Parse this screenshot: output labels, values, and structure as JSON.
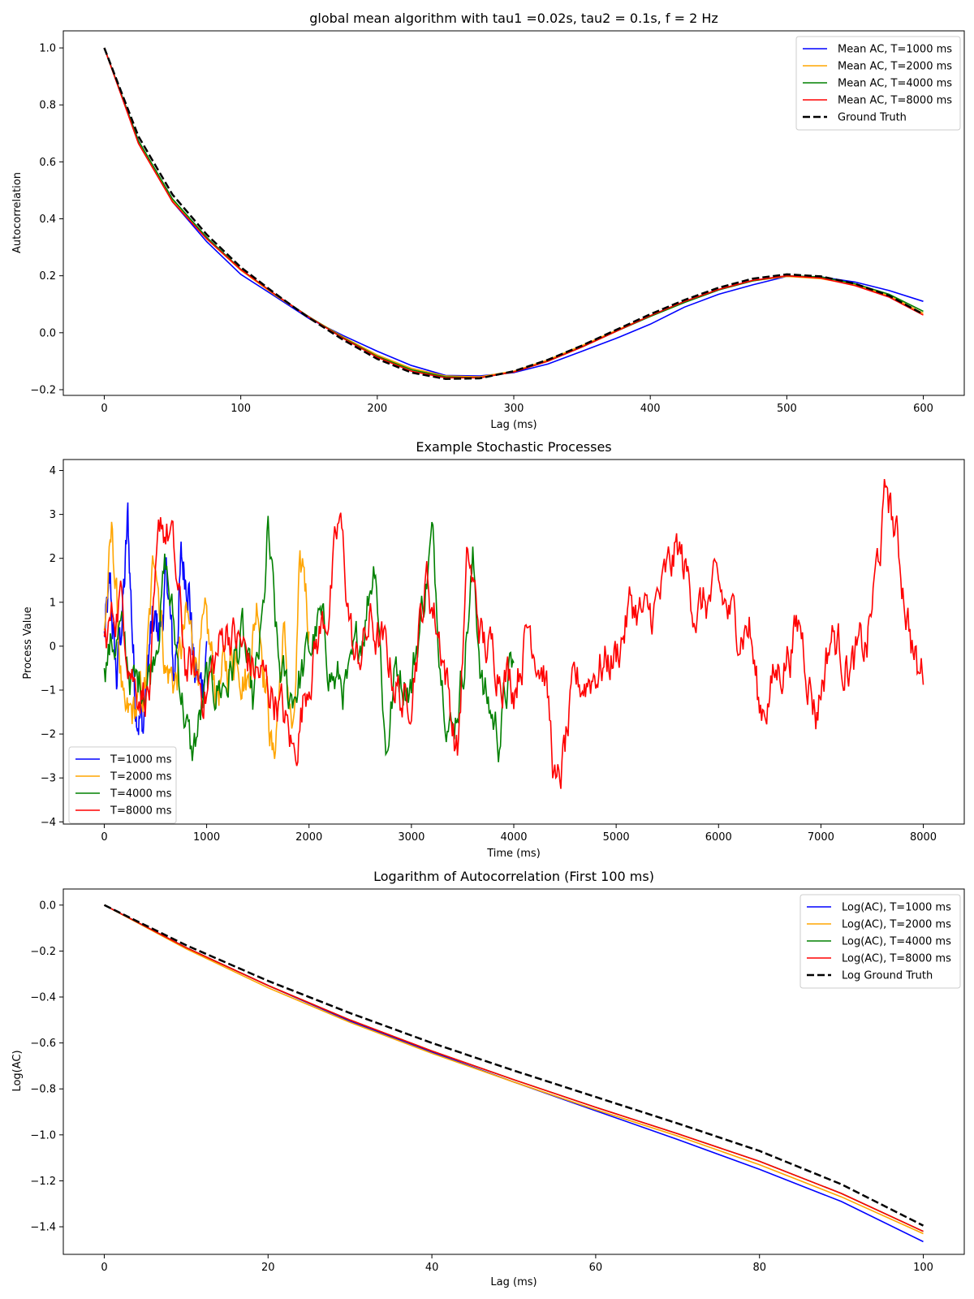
{
  "chart_data": [
    {
      "id": "ac",
      "type": "line",
      "title": "global mean algorithm with tau1 =0.02s, tau2 = 0.1s, f = 2 Hz",
      "xlabel": "Lag (ms)",
      "ylabel": "Autocorrelation",
      "xlim": [
        -30,
        630
      ],
      "ylim": [
        -0.22,
        1.06
      ],
      "xticks": [
        0,
        100,
        200,
        300,
        400,
        500,
        600
      ],
      "yticks": [
        -0.2,
        0.0,
        0.2,
        0.4,
        0.6,
        0.8,
        1.0
      ],
      "xtick_labels": [
        "0",
        "100",
        "200",
        "300",
        "400",
        "500",
        "600"
      ],
      "ytick_labels": [
        "−0.2",
        "0.0",
        "0.2",
        "0.4",
        "0.6",
        "0.8",
        "1.0"
      ],
      "legend_position": "top-right",
      "series": [
        {
          "name": "Mean AC, T=1000 ms",
          "color": "#0000ff",
          "style": "solid",
          "x": [
            0,
            25,
            50,
            75,
            100,
            125,
            150,
            175,
            200,
            225,
            250,
            275,
            300,
            325,
            350,
            375,
            400,
            425,
            450,
            475,
            500,
            525,
            550,
            575,
            600
          ],
          "y": [
            1.0,
            0.675,
            0.46,
            0.32,
            0.205,
            0.128,
            0.05,
            -0.01,
            -0.065,
            -0.115,
            -0.15,
            -0.152,
            -0.14,
            -0.11,
            -0.065,
            -0.02,
            0.03,
            0.09,
            0.135,
            0.168,
            0.198,
            0.196,
            0.178,
            0.148,
            0.11
          ]
        },
        {
          "name": "Mean AC, T=2000 ms",
          "color": "#ffa500",
          "style": "solid",
          "x": [
            0,
            25,
            50,
            75,
            100,
            125,
            150,
            175,
            200,
            225,
            250,
            275,
            300,
            325,
            350,
            375,
            400,
            425,
            450,
            475,
            500,
            525,
            550,
            575,
            600
          ],
          "y": [
            1.0,
            0.67,
            0.465,
            0.33,
            0.22,
            0.132,
            0.055,
            -0.015,
            -0.078,
            -0.125,
            -0.152,
            -0.155,
            -0.135,
            -0.095,
            -0.045,
            0.008,
            0.06,
            0.11,
            0.152,
            0.182,
            0.198,
            0.19,
            0.168,
            0.13,
            0.068
          ]
        },
        {
          "name": "Mean AC, T=4000 ms",
          "color": "#008000",
          "style": "solid",
          "x": [
            0,
            25,
            50,
            75,
            100,
            125,
            150,
            175,
            200,
            225,
            250,
            275,
            300,
            325,
            350,
            375,
            400,
            425,
            450,
            475,
            500,
            525,
            550,
            575,
            600
          ],
          "y": [
            1.0,
            0.675,
            0.47,
            0.335,
            0.223,
            0.135,
            0.056,
            -0.018,
            -0.083,
            -0.13,
            -0.155,
            -0.158,
            -0.138,
            -0.1,
            -0.05,
            0.005,
            0.057,
            0.106,
            0.15,
            0.182,
            0.2,
            0.196,
            0.172,
            0.135,
            0.075
          ]
        },
        {
          "name": "Mean AC, T=8000 ms",
          "color": "#ff0000",
          "style": "solid",
          "x": [
            0,
            25,
            50,
            75,
            100,
            125,
            150,
            175,
            200,
            225,
            250,
            275,
            300,
            325,
            350,
            375,
            400,
            425,
            450,
            475,
            500,
            525,
            550,
            575,
            600
          ],
          "y": [
            1.0,
            0.665,
            0.46,
            0.33,
            0.222,
            0.135,
            0.055,
            -0.02,
            -0.086,
            -0.135,
            -0.158,
            -0.158,
            -0.138,
            -0.1,
            -0.05,
            0.005,
            0.06,
            0.11,
            0.152,
            0.184,
            0.2,
            0.192,
            0.165,
            0.125,
            0.062
          ]
        },
        {
          "name": "Ground Truth",
          "color": "#000000",
          "style": "dashed",
          "x": [
            0,
            25,
            50,
            75,
            100,
            125,
            150,
            175,
            200,
            225,
            250,
            275,
            300,
            325,
            350,
            375,
            400,
            425,
            450,
            475,
            500,
            525,
            550,
            575,
            600
          ],
          "y": [
            1.0,
            0.69,
            0.485,
            0.345,
            0.23,
            0.138,
            0.052,
            -0.025,
            -0.092,
            -0.14,
            -0.162,
            -0.16,
            -0.135,
            -0.095,
            -0.045,
            0.01,
            0.065,
            0.115,
            0.158,
            0.19,
            0.205,
            0.198,
            0.172,
            0.13,
            0.065
          ]
        }
      ]
    },
    {
      "id": "proc",
      "type": "line",
      "title": "Example Stochastic Processes",
      "xlabel": "Time (ms)",
      "ylabel": "Process Value",
      "xlim": [
        -400,
        8400
      ],
      "ylim": [
        -4.05,
        4.25
      ],
      "xticks": [
        0,
        1000,
        2000,
        3000,
        4000,
        5000,
        6000,
        7000,
        8000
      ],
      "yticks": [
        -4,
        -3,
        -2,
        -1,
        0,
        1,
        2,
        3,
        4
      ],
      "xtick_labels": [
        "0",
        "1000",
        "2000",
        "3000",
        "4000",
        "5000",
        "6000",
        "7000",
        "8000"
      ],
      "ytick_labels": [
        "−4",
        "−3",
        "−2",
        "−1",
        "0",
        "1",
        "2",
        "3",
        "4"
      ],
      "legend_position": "bottom-left",
      "series": [
        {
          "name": "T=1000 ms",
          "color": "#0000ff",
          "duration": 1000,
          "step": 5,
          "anchors": [
            [
              0,
              0.2
            ],
            [
              60,
              1.2
            ],
            [
              120,
              -0.8
            ],
            [
              200,
              1.5
            ],
            [
              230,
              2.8
            ],
            [
              300,
              -1.0
            ],
            [
              380,
              -1.9
            ],
            [
              450,
              0.2
            ],
            [
              550,
              0.5
            ],
            [
              620,
              1.5
            ],
            [
              680,
              -0.8
            ],
            [
              750,
              1.8
            ],
            [
              820,
              1.7
            ],
            [
              880,
              -0.6
            ],
            [
              950,
              -1.0
            ],
            [
              1000,
              0.0
            ]
          ]
        },
        {
          "name": "T=2000 ms",
          "color": "#ffa500",
          "duration": 2000,
          "step": 8,
          "anchors": [
            [
              0,
              0.5
            ],
            [
              80,
              2.5
            ],
            [
              200,
              -2.0
            ],
            [
              300,
              -1.5
            ],
            [
              400,
              -1.0
            ],
            [
              500,
              2.4
            ],
            [
              600,
              -0.5
            ],
            [
              700,
              -0.8
            ],
            [
              800,
              0.5
            ],
            [
              900,
              -0.2
            ],
            [
              1000,
              0.2
            ],
            [
              1100,
              -1.0
            ],
            [
              1200,
              -0.5
            ],
            [
              1300,
              0.0
            ],
            [
              1400,
              -0.8
            ],
            [
              1500,
              1.2
            ],
            [
              1600,
              -1.3
            ],
            [
              1650,
              -2.7
            ],
            [
              1750,
              0.2
            ],
            [
              1850,
              -2.3
            ],
            [
              1900,
              1.0
            ],
            [
              1950,
              1.8
            ],
            [
              2000,
              0.5
            ]
          ]
        },
        {
          "name": "T=4000 ms",
          "color": "#008000",
          "duration": 4000,
          "step": 10,
          "anchors": [
            [
              0,
              -0.2
            ],
            [
              150,
              0.3
            ],
            [
              300,
              -1.0
            ],
            [
              450,
              -0.5
            ],
            [
              600,
              1.8
            ],
            [
              700,
              0.0
            ],
            [
              850,
              -2.6
            ],
            [
              1000,
              -1.0
            ],
            [
              1200,
              -0.8
            ],
            [
              1350,
              0.2
            ],
            [
              1450,
              -1.5
            ],
            [
              1550,
              0.5
            ],
            [
              1600,
              2.5
            ],
            [
              1700,
              -0.5
            ],
            [
              1800,
              -1.2
            ],
            [
              1950,
              -0.5
            ],
            [
              2100,
              0.5
            ],
            [
              2250,
              -0.8
            ],
            [
              2400,
              -1.0
            ],
            [
              2550,
              0.8
            ],
            [
              2650,
              2.2
            ],
            [
              2750,
              -2.4
            ],
            [
              2850,
              -0.5
            ],
            [
              3000,
              -0.8
            ],
            [
              3100,
              0.8
            ],
            [
              3200,
              2.4
            ],
            [
              3300,
              -0.5
            ],
            [
              3400,
              -2.0
            ],
            [
              3500,
              -0.5
            ],
            [
              3600,
              1.8
            ],
            [
              3700,
              -1.0
            ],
            [
              3850,
              -2.0
            ],
            [
              3950,
              -0.8
            ],
            [
              4000,
              -0.5
            ]
          ]
        },
        {
          "name": "T=8000 ms",
          "color": "#ff0000",
          "duration": 8000,
          "step": 10,
          "anchors": [
            [
              0,
              0.0
            ],
            [
              150,
              1.2
            ],
            [
              300,
              -0.8
            ],
            [
              450,
              -1.0
            ],
            [
              550,
              2.8
            ],
            [
              650,
              2.5
            ],
            [
              800,
              -0.5
            ],
            [
              1000,
              -1.0
            ],
            [
              1200,
              0.5
            ],
            [
              1450,
              -0.5
            ],
            [
              1700,
              -1.2
            ],
            [
              1850,
              -2.5
            ],
            [
              2000,
              -0.5
            ],
            [
              2200,
              1.0
            ],
            [
              2300,
              2.8
            ],
            [
              2450,
              -0.5
            ],
            [
              2600,
              0.5
            ],
            [
              2800,
              -0.5
            ],
            [
              2950,
              -1.5
            ],
            [
              3150,
              1.5
            ],
            [
              3300,
              0.0
            ],
            [
              3450,
              -2.5
            ],
            [
              3550,
              2.0
            ],
            [
              3700,
              0.0
            ],
            [
              3850,
              -0.3
            ],
            [
              4000,
              -0.8
            ],
            [
              4150,
              0.5
            ],
            [
              4300,
              -0.5
            ],
            [
              4420,
              -3.5
            ],
            [
              4600,
              -1.0
            ],
            [
              4800,
              -0.5
            ],
            [
              5000,
              -0.2
            ],
            [
              5150,
              1.0
            ],
            [
              5300,
              0.5
            ],
            [
              5450,
              1.2
            ],
            [
              5600,
              2.2
            ],
            [
              5800,
              0.8
            ],
            [
              6000,
              1.2
            ],
            [
              6150,
              0.5
            ],
            [
              6300,
              0.5
            ],
            [
              6400,
              -1.5
            ],
            [
              6600,
              -0.5
            ],
            [
              6800,
              0.5
            ],
            [
              6950,
              -1.5
            ],
            [
              7100,
              0.3
            ],
            [
              7300,
              -0.5
            ],
            [
              7450,
              0.0
            ],
            [
              7550,
              1.8
            ],
            [
              7650,
              3.6
            ],
            [
              7800,
              1.5
            ],
            [
              7950,
              -0.8
            ],
            [
              8000,
              -0.5
            ]
          ]
        }
      ]
    },
    {
      "id": "log",
      "type": "line",
      "title": "Logarithm of Autocorrelation (First 100 ms)",
      "xlabel": "Lag (ms)",
      "ylabel": "Log(AC)",
      "xlim": [
        -5,
        105
      ],
      "ylim": [
        -1.52,
        0.07
      ],
      "xticks": [
        0,
        20,
        40,
        60,
        80,
        100
      ],
      "yticks": [
        -1.4,
        -1.2,
        -1.0,
        -0.8,
        -0.6,
        -0.4,
        -0.2,
        0.0
      ],
      "xtick_labels": [
        "0",
        "20",
        "40",
        "60",
        "80",
        "100"
      ],
      "ytick_labels": [
        "−1.4",
        "−1.2",
        "−1.0",
        "−0.8",
        "−0.6",
        "−0.4",
        "−0.2",
        "0.0"
      ],
      "legend_position": "top-right",
      "series": [
        {
          "name": "Log(AC), T=1000 ms",
          "color": "#0000ff",
          "style": "solid",
          "x": [
            0,
            10,
            20,
            30,
            40,
            50,
            60,
            70,
            80,
            90,
            100
          ],
          "y": [
            0.0,
            -0.185,
            -0.35,
            -0.505,
            -0.64,
            -0.77,
            -0.895,
            -1.02,
            -1.15,
            -1.29,
            -1.465
          ]
        },
        {
          "name": "Log(AC), T=2000 ms",
          "color": "#ffa500",
          "style": "solid",
          "x": [
            0,
            10,
            20,
            30,
            40,
            50,
            60,
            70,
            80,
            90,
            100
          ],
          "y": [
            0.0,
            -0.19,
            -0.36,
            -0.51,
            -0.645,
            -0.77,
            -0.89,
            -1.005,
            -1.13,
            -1.27,
            -1.43
          ]
        },
        {
          "name": "Log(AC), T=4000 ms",
          "color": "#008000",
          "style": "solid",
          "x": [
            0,
            10,
            20,
            30,
            40,
            50,
            60,
            70,
            80,
            90,
            100
          ],
          "y": [
            0.0,
            -0.185,
            -0.35,
            -0.5,
            -0.635,
            -0.76,
            -0.88,
            -0.995,
            -1.115,
            -1.255,
            -1.42
          ]
        },
        {
          "name": "Log(AC), T=8000 ms",
          "color": "#ff0000",
          "style": "solid",
          "x": [
            0,
            10,
            20,
            30,
            40,
            50,
            60,
            70,
            80,
            90,
            100
          ],
          "y": [
            0.0,
            -0.185,
            -0.35,
            -0.5,
            -0.635,
            -0.76,
            -0.88,
            -0.995,
            -1.115,
            -1.255,
            -1.42
          ]
        },
        {
          "name": "Log Ground Truth",
          "color": "#000000",
          "style": "dashed",
          "x": [
            0,
            10,
            20,
            30,
            40,
            50,
            60,
            70,
            80,
            90,
            100
          ],
          "y": [
            0.0,
            -0.175,
            -0.33,
            -0.47,
            -0.6,
            -0.72,
            -0.835,
            -0.95,
            -1.07,
            -1.215,
            -1.395
          ]
        }
      ]
    }
  ]
}
